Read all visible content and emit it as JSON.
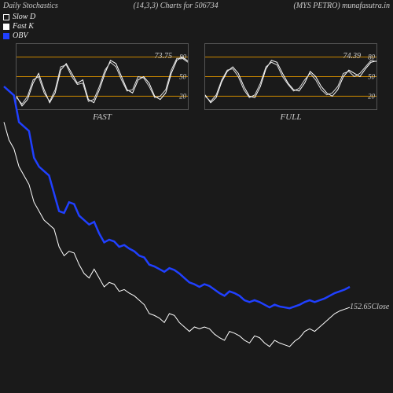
{
  "header": {
    "left": "Daily Stochastics",
    "center": "(14,3,3) Charts for 506734",
    "right": "(MYS PETRO) munafasutra.in"
  },
  "legend": {
    "slow_d": {
      "label": "Slow D",
      "color": "#ffffff"
    },
    "fast_k": {
      "label": "Fast K",
      "color": "#ffffff"
    },
    "obv": {
      "label": "OBV",
      "color": "#2040ff"
    }
  },
  "sub_charts": {
    "fast": {
      "label": "FAST",
      "ylim": [
        0,
        100
      ],
      "levels": [
        20,
        50,
        80
      ],
      "level_color": "#cc8800",
      "yticks_right": [
        20,
        50,
        80
      ],
      "value_label": "73.75",
      "line1": [
        20,
        5,
        15,
        40,
        55,
        30,
        10,
        25,
        60,
        70,
        55,
        40,
        45,
        15,
        10,
        30,
        55,
        75,
        70,
        50,
        30,
        25,
        45,
        50,
        40,
        20,
        15,
        25,
        55,
        75,
        80,
        74
      ],
      "line2": [
        18,
        8,
        20,
        45,
        50,
        25,
        12,
        30,
        65,
        68,
        50,
        38,
        40,
        12,
        15,
        35,
        60,
        72,
        65,
        45,
        28,
        30,
        50,
        48,
        35,
        18,
        20,
        30,
        60,
        78,
        78,
        72
      ]
    },
    "full": {
      "label": "FULL",
      "ylim": [
        0,
        100
      ],
      "levels": [
        20,
        50,
        80
      ],
      "level_color": "#cc8800",
      "yticks_right": [
        20,
        50,
        80
      ],
      "value_label": "74.39",
      "line1": [
        22,
        10,
        18,
        42,
        58,
        65,
        55,
        35,
        20,
        18,
        35,
        62,
        75,
        72,
        55,
        40,
        30,
        28,
        40,
        58,
        50,
        35,
        25,
        20,
        30,
        50,
        60,
        55,
        50,
        62,
        72,
        74
      ],
      "line2": [
        20,
        12,
        22,
        45,
        60,
        62,
        50,
        30,
        18,
        22,
        40,
        65,
        72,
        68,
        50,
        38,
        28,
        32,
        45,
        55,
        45,
        30,
        22,
        25,
        35,
        55,
        58,
        50,
        55,
        65,
        75,
        73
      ]
    }
  },
  "main_chart": {
    "close_label": "152.65Close",
    "obv": {
      "color": "#2040ff",
      "width": 2.5,
      "data": [
        400,
        395,
        390,
        360,
        355,
        350,
        320,
        310,
        305,
        300,
        280,
        260,
        258,
        270,
        268,
        255,
        250,
        245,
        248,
        235,
        225,
        228,
        226,
        220,
        222,
        218,
        215,
        210,
        208,
        200,
        198,
        195,
        192,
        196,
        194,
        190,
        185,
        180,
        178,
        175,
        178,
        176,
        172,
        168,
        165,
        170,
        168,
        165,
        160,
        158,
        160,
        158,
        155,
        152,
        155,
        153,
        152,
        151,
        153,
        155,
        158,
        160,
        158,
        160,
        162,
        165,
        168,
        170,
        172,
        175
      ]
    },
    "price": {
      "color": "#ffffff",
      "width": 1,
      "data": [
        360,
        340,
        330,
        310,
        300,
        290,
        270,
        260,
        250,
        245,
        240,
        220,
        210,
        215,
        213,
        200,
        190,
        185,
        195,
        185,
        175,
        180,
        178,
        170,
        172,
        168,
        165,
        160,
        155,
        145,
        143,
        140,
        135,
        145,
        143,
        135,
        130,
        125,
        130,
        128,
        130,
        128,
        122,
        118,
        115,
        125,
        123,
        120,
        115,
        112,
        120,
        118,
        112,
        108,
        115,
        112,
        110,
        108,
        114,
        118,
        125,
        128,
        125,
        130,
        135,
        140,
        145,
        148,
        150,
        152
      ]
    },
    "yrange": [
      100,
      400
    ]
  },
  "style": {
    "bg": "#1a1a1a",
    "border": "#555555",
    "text": "#cccccc",
    "tick_font": 9
  }
}
